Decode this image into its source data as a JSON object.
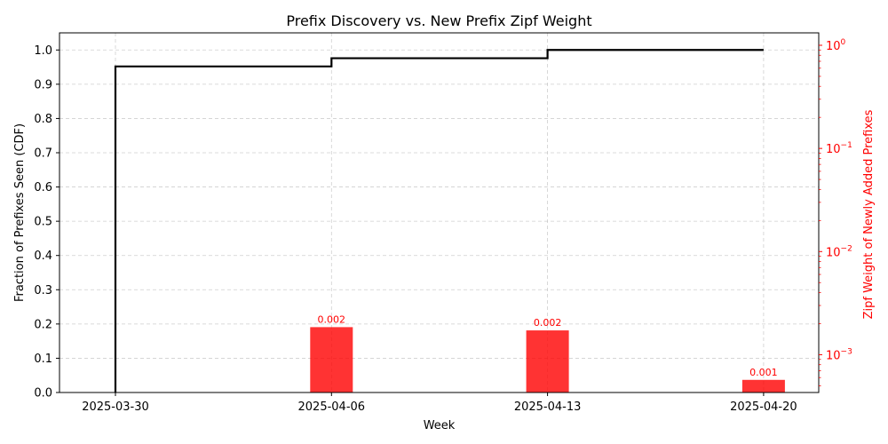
{
  "chart_data": {
    "type": "line",
    "title": "Prefix Discovery vs. New Prefix Zipf Weight",
    "xlabel": "Week",
    "ylabel": "Fraction of Prefixes Seen (CDF)",
    "y2label": "Zipf Weight of Newly Added Prefixes",
    "categories": [
      "2025-03-30",
      "2025-04-06",
      "2025-04-13",
      "2025-04-20"
    ],
    "grid": true,
    "ylim": [
      0,
      1.05
    ],
    "yticks": [
      "0.0",
      "0.1",
      "0.2",
      "0.3",
      "0.4",
      "0.5",
      "0.6",
      "0.7",
      "0.8",
      "0.9",
      "1.0"
    ],
    "y2scale": "log",
    "y2ticks": [
      {
        "base": "10",
        "exp": "−3",
        "value": 0.001
      },
      {
        "base": "10",
        "exp": "−2",
        "value": 0.01
      },
      {
        "base": "10",
        "exp": "−1",
        "value": 0.1
      },
      {
        "base": "10",
        "exp": "0",
        "value": 1
      }
    ],
    "cdf_line": {
      "color": "#000000",
      "x": [
        "2025-03-30",
        "2025-04-06",
        "2025-04-13",
        "2025-04-20"
      ],
      "y": [
        0.952,
        0.976,
        1.0,
        1.0
      ]
    },
    "zipf_bars": {
      "color": "#ff0000",
      "x": [
        "2025-04-06",
        "2025-04-13",
        "2025-04-20"
      ],
      "values": [
        0.00185,
        0.00172,
        0.00057
      ],
      "labels": [
        "0.002",
        "0.002",
        "0.001"
      ]
    }
  }
}
